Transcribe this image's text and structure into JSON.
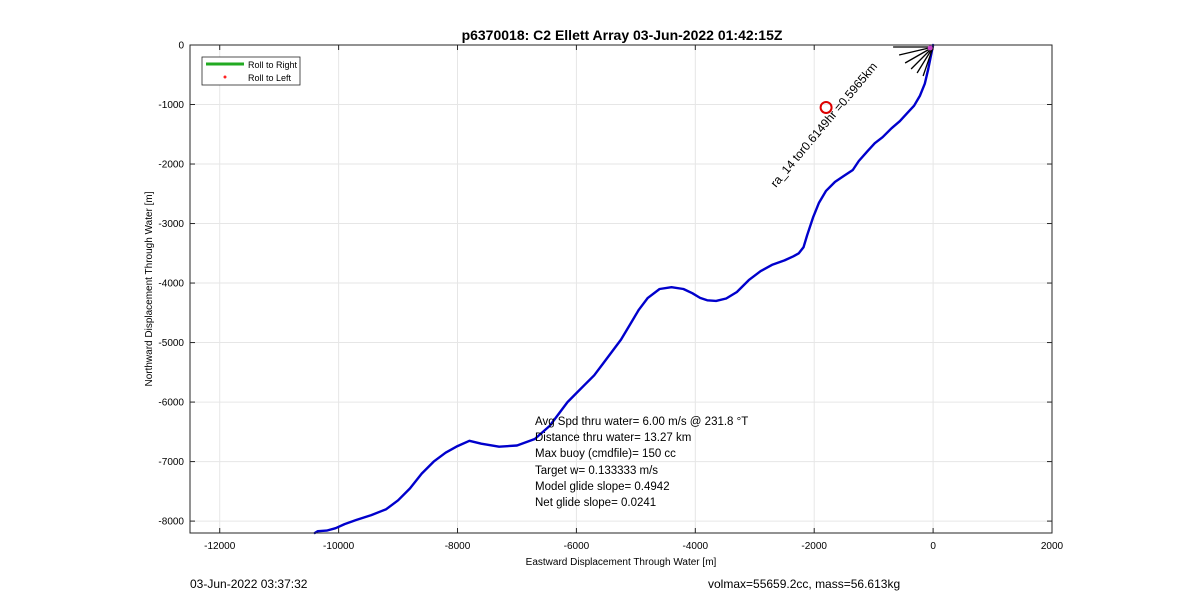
{
  "chart_data": {
    "type": "line",
    "title": "p6370018: C2 Ellett Array 03-Jun-2022 01:42:15Z",
    "xlabel": "Eastward Displacement Through Water [m]",
    "ylabel": "Northward Displacement Through Water [m]",
    "xlim": [
      -12500,
      2000
    ],
    "ylim": [
      -8200,
      0
    ],
    "xticks": [
      -12000,
      -10000,
      -8000,
      -6000,
      -4000,
      -2000,
      0,
      2000
    ],
    "yticks": [
      0,
      -1000,
      -2000,
      -3000,
      -4000,
      -5000,
      -6000,
      -7000,
      -8000
    ],
    "grid": true,
    "legend_position": "top-left",
    "legend": [
      {
        "label": "Roll to Right",
        "color": "#22aa22",
        "style": "line"
      },
      {
        "label": "Roll to Left",
        "color": "#ff2222",
        "style": "dot"
      }
    ],
    "series": [
      {
        "color": "#0000cc",
        "x": [
          0,
          -40,
          -80,
          -140,
          -220,
          -320,
          -440,
          -560,
          -700,
          -850,
          -980,
          -1100,
          -1250,
          -1350,
          -1500,
          -1650,
          -1800,
          -1920,
          -2020,
          -2120,
          -2180,
          -2260,
          -2350,
          -2500,
          -2700,
          -2900,
          -3100,
          -3300,
          -3480,
          -3650,
          -3800,
          -3920,
          -4050,
          -4200,
          -4400,
          -4600,
          -4800,
          -4950,
          -5100,
          -5250,
          -5400,
          -5550,
          -5700,
          -5850,
          -6000,
          -6150,
          -6300,
          -6450,
          -6700,
          -7000,
          -7300,
          -7600,
          -7800,
          -8000,
          -8200,
          -8400,
          -8600,
          -8800,
          -9000,
          -9200,
          -9450,
          -9700,
          -9900,
          -10050,
          -10200,
          -10350,
          -10400
        ],
        "y": [
          0,
          -200,
          -400,
          -650,
          -850,
          -1020,
          -1150,
          -1280,
          -1400,
          -1550,
          -1650,
          -1780,
          -1950,
          -2100,
          -2200,
          -2300,
          -2450,
          -2650,
          -2900,
          -3200,
          -3400,
          -3500,
          -3550,
          -3620,
          -3690,
          -3800,
          -3950,
          -4150,
          -4260,
          -4300,
          -4290,
          -4250,
          -4170,
          -4100,
          -4070,
          -4100,
          -4250,
          -4450,
          -4700,
          -4950,
          -5150,
          -5350,
          -5550,
          -5700,
          -5850,
          -6000,
          -6200,
          -6400,
          -6620,
          -6730,
          -6750,
          -6700,
          -6650,
          -6740,
          -6850,
          -7000,
          -7200,
          -7450,
          -7650,
          -7800,
          -7900,
          -7980,
          -8050,
          -8120,
          -8160,
          -8170,
          -8200
        ]
      }
    ],
    "target_circle": {
      "x": -1800,
      "y": -1050,
      "color": "#dd0000"
    },
    "callouts": [
      {
        "text": "0.5965km",
        "text_prefix": "ra_14 tor0.6149hr ="
      }
    ],
    "annotation_lines": [
      "Avg Spd thru water=  6.00 m/s @ 231.8 °T",
      "Distance thru water= 13.27 km",
      "Max buoy (cmdfile)= 150 cc",
      "Target w= 0.133333 m/s",
      "Model glide slope= 0.4942",
      "Net glide slope= 0.0241"
    ]
  },
  "footer": {
    "left": "03-Jun-2022 03:37:32",
    "right": "volmax=55659.2cc, mass=56.613kg"
  }
}
